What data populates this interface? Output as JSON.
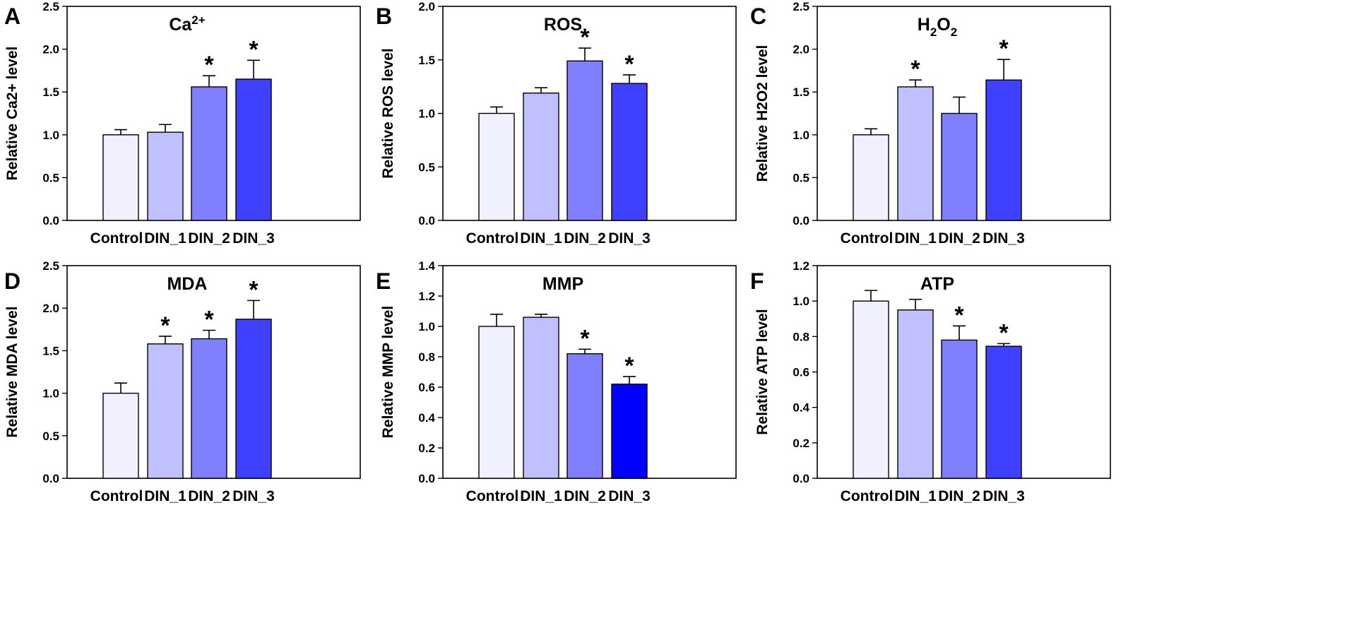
{
  "chart_data": [
    {
      "panel": "A",
      "type": "bar",
      "title": "Ca",
      "title_sup": "2+",
      "title_sub": "",
      "ylabel": "Relative Ca2+ level",
      "categories": [
        "Control",
        "DIN_1",
        "DIN_2",
        "DIN_3"
      ],
      "values": [
        1.0,
        1.03,
        1.56,
        1.65
      ],
      "errors": [
        0.06,
        0.09,
        0.13,
        0.22
      ],
      "significant": [
        false,
        false,
        true,
        true
      ],
      "ylim": [
        0,
        2.5
      ],
      "ticks": [
        0.0,
        0.5,
        1.0,
        1.5,
        2.0,
        2.5
      ]
    },
    {
      "panel": "B",
      "type": "bar",
      "title": "ROS",
      "title_sup": "",
      "title_sub": "",
      "ylabel": "Relative ROS level",
      "categories": [
        "Control",
        "DIN_1",
        "DIN_2",
        "DIN_3"
      ],
      "values": [
        1.0,
        1.19,
        1.49,
        1.28
      ],
      "errors": [
        0.06,
        0.05,
        0.12,
        0.08
      ],
      "significant": [
        false,
        false,
        true,
        true
      ],
      "ylim": [
        0,
        2.0
      ],
      "ticks": [
        0.0,
        0.5,
        1.0,
        1.5,
        2.0
      ]
    },
    {
      "panel": "C",
      "type": "bar",
      "title": "H",
      "title_sup": "",
      "title_sub": "2",
      "title_tail": "O",
      "title_tail_sub": "2",
      "ylabel": "Relative H2O2 level",
      "categories": [
        "Control",
        "DIN_1",
        "DIN_2",
        "DIN_3"
      ],
      "values": [
        1.0,
        1.56,
        1.25,
        1.64
      ],
      "errors": [
        0.07,
        0.08,
        0.19,
        0.24
      ],
      "significant": [
        false,
        true,
        false,
        true
      ],
      "ylim": [
        0,
        2.5
      ],
      "ticks": [
        0.0,
        0.5,
        1.0,
        1.5,
        2.0,
        2.5
      ]
    },
    {
      "panel": "D",
      "type": "bar",
      "title": "MDA",
      "title_sup": "",
      "title_sub": "",
      "ylabel": "Relative MDA level",
      "categories": [
        "Control",
        "DIN_1",
        "DIN_2",
        "DIN_3"
      ],
      "values": [
        1.0,
        1.58,
        1.64,
        1.87
      ],
      "errors": [
        0.12,
        0.09,
        0.1,
        0.22
      ],
      "significant": [
        false,
        true,
        true,
        true
      ],
      "ylim": [
        0,
        2.5
      ],
      "ticks": [
        0.0,
        0.5,
        1.0,
        1.5,
        2.0,
        2.5
      ]
    },
    {
      "panel": "E",
      "type": "bar",
      "title": "MMP",
      "title_sup": "",
      "title_sub": "",
      "ylabel": "Relative MMP level",
      "categories": [
        "Control",
        "DIN_1",
        "DIN_2",
        "DIN_3"
      ],
      "values": [
        1.0,
        1.06,
        0.82,
        0.62
      ],
      "errors": [
        0.08,
        0.02,
        0.03,
        0.05
      ],
      "significant": [
        false,
        false,
        true,
        true
      ],
      "ylim": [
        0,
        1.4
      ],
      "ticks": [
        0.0,
        0.2,
        0.4,
        0.6,
        0.8,
        1.0,
        1.2,
        1.4
      ]
    },
    {
      "panel": "F",
      "type": "bar",
      "title": "ATP",
      "title_sup": "",
      "title_sub": "",
      "ylabel": "Relative ATP level",
      "categories": [
        "Control",
        "DIN_1",
        "DIN_2",
        "DIN_3"
      ],
      "values": [
        1.0,
        0.95,
        0.78,
        0.745
      ],
      "errors": [
        0.06,
        0.06,
        0.08,
        0.015
      ],
      "significant": [
        false,
        false,
        true,
        true
      ],
      "ylim": [
        0,
        1.2
      ],
      "ticks": [
        0.0,
        0.2,
        0.4,
        0.6,
        0.8,
        1.0,
        1.2
      ]
    }
  ],
  "colors": {
    "Control": "#f0f0ff",
    "DIN_1": "#c0c0ff",
    "DIN_2": "#8080ff",
    "DIN_3": "#4040ff",
    "DIN_3_alt": "#0000ff"
  },
  "significance_marker": "*"
}
